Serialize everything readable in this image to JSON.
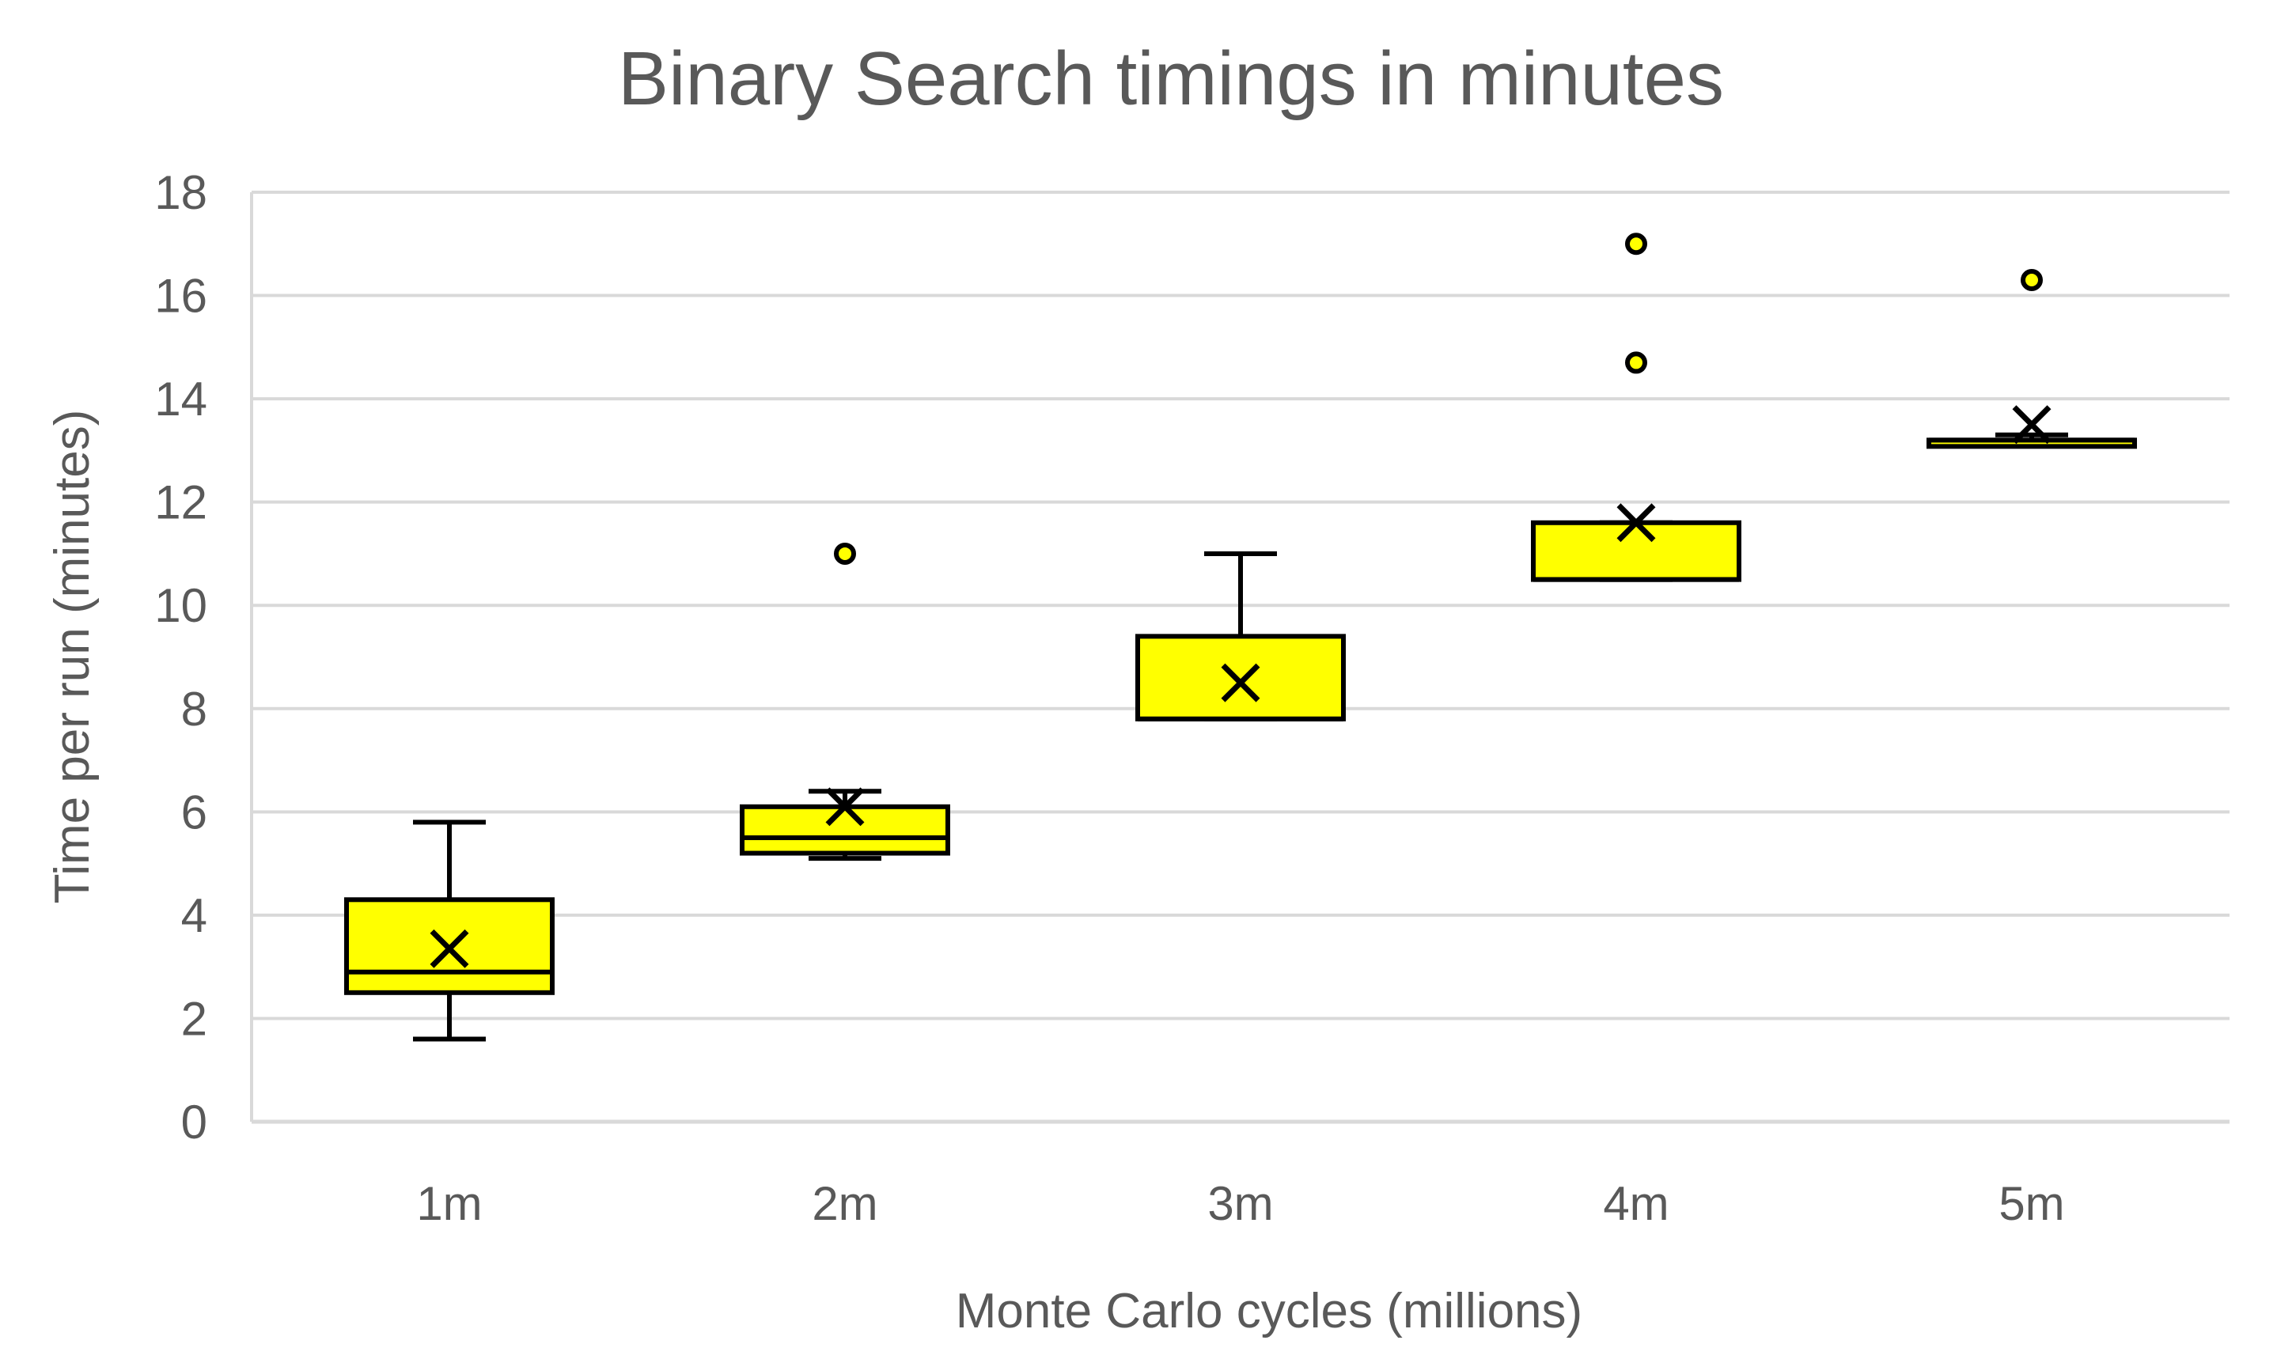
{
  "chart_data": {
    "type": "box",
    "title": "Binary Search timings in minutes",
    "xlabel": "Monte Carlo cycles (millions)",
    "ylabel": "Time per run (minutes)",
    "ylim": [
      0,
      18
    ],
    "yticks": [
      "0",
      "2",
      "4",
      "6",
      "8",
      "10",
      "12",
      "14",
      "16",
      "18"
    ],
    "grid": true,
    "colors": {
      "box_fill": "#FFFF00",
      "stroke": "#000000",
      "grid": "#D9D9D9",
      "text": "#595959"
    },
    "categories": [
      "1m",
      "2m",
      "3m",
      "4m",
      "5m"
    ],
    "boxes": [
      {
        "category": "1m",
        "whisker_low": 1.6,
        "q1": 2.5,
        "median": 2.9,
        "q3": 4.3,
        "whisker_high": 5.8,
        "mean": 3.35,
        "outliers": []
      },
      {
        "category": "2m",
        "whisker_low": 5.1,
        "q1": 5.2,
        "median": 5.5,
        "q3": 6.1,
        "whisker_high": 6.4,
        "mean": 6.1,
        "outliers": [
          11.0
        ]
      },
      {
        "category": "3m",
        "whisker_low": 7.8,
        "q1": 7.8,
        "median": 7.8,
        "q3": 9.4,
        "whisker_high": 11.0,
        "mean": 8.5,
        "outliers": []
      },
      {
        "category": "4m",
        "whisker_low": 10.5,
        "q1": 10.5,
        "median": 10.5,
        "q3": 11.6,
        "whisker_high": 11.6,
        "mean": 11.6,
        "outliers": [
          14.7,
          17.0
        ]
      },
      {
        "category": "5m",
        "whisker_low": 13.1,
        "q1": 13.1,
        "median": 13.2,
        "q3": 13.2,
        "whisker_high": 13.3,
        "mean": 13.5,
        "outliers": [
          16.3
        ]
      }
    ]
  }
}
